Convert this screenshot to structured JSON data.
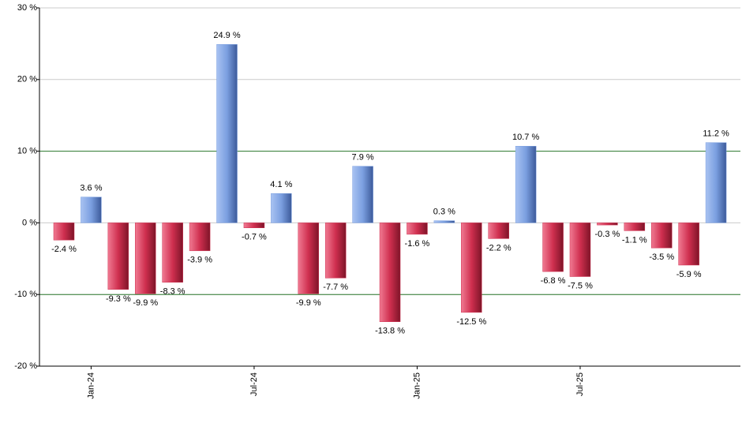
{
  "chart_data": {
    "type": "bar",
    "categories": [
      null,
      "Jan-24",
      null,
      null,
      null,
      null,
      null,
      "Jul-24",
      null,
      null,
      null,
      null,
      null,
      "Jan-25",
      null,
      null,
      null,
      null,
      null,
      "Jul-25",
      null,
      null,
      null,
      null,
      null
    ],
    "values": [
      -2.4,
      3.6,
      -9.3,
      -9.9,
      -8.3,
      -3.9,
      24.9,
      -0.7,
      4.1,
      -9.9,
      -7.7,
      7.9,
      -13.8,
      -1.6,
      0.3,
      -12.5,
      -2.2,
      10.7,
      -6.8,
      -7.5,
      -0.3,
      -1.1,
      -3.5,
      -5.9,
      11.2
    ],
    "value_labels": [
      "-2.4 %",
      "3.6 %",
      "-9.3 %",
      "-9.9 %",
      "-8.3 %",
      "-3.9 %",
      "24.9 %",
      "-0.7 %",
      "4.1 %",
      "-9.9 %",
      "-7.7 %",
      "7.9 %",
      "-13.8 %",
      "-1.6 %",
      "0.3 %",
      "-12.5 %",
      "-2.2 %",
      "10.7 %",
      "-6.8 %",
      "-7.5 %",
      "-0.3 %",
      "-1.1 %",
      "-3.5 %",
      "-5.9 %",
      "11.2 %"
    ],
    "positive_color": "#7b9fe0",
    "negative_color": "#cf2f4f",
    "ylim": [
      -20,
      30
    ],
    "yticks": [
      {
        "value": -20,
        "label": "-20 %"
      },
      {
        "value": -10,
        "label": "-10 %"
      },
      {
        "value": 0,
        "label": "0 %"
      },
      {
        "value": 10,
        "label": "10 %"
      },
      {
        "value": 20,
        "label": "20 %"
      },
      {
        "value": 30,
        "label": "30 %"
      }
    ],
    "grid": true,
    "grid_color": "#cccccc",
    "highlight_lines": [
      10,
      -10
    ],
    "highlight_color": "#2e7d32"
  }
}
